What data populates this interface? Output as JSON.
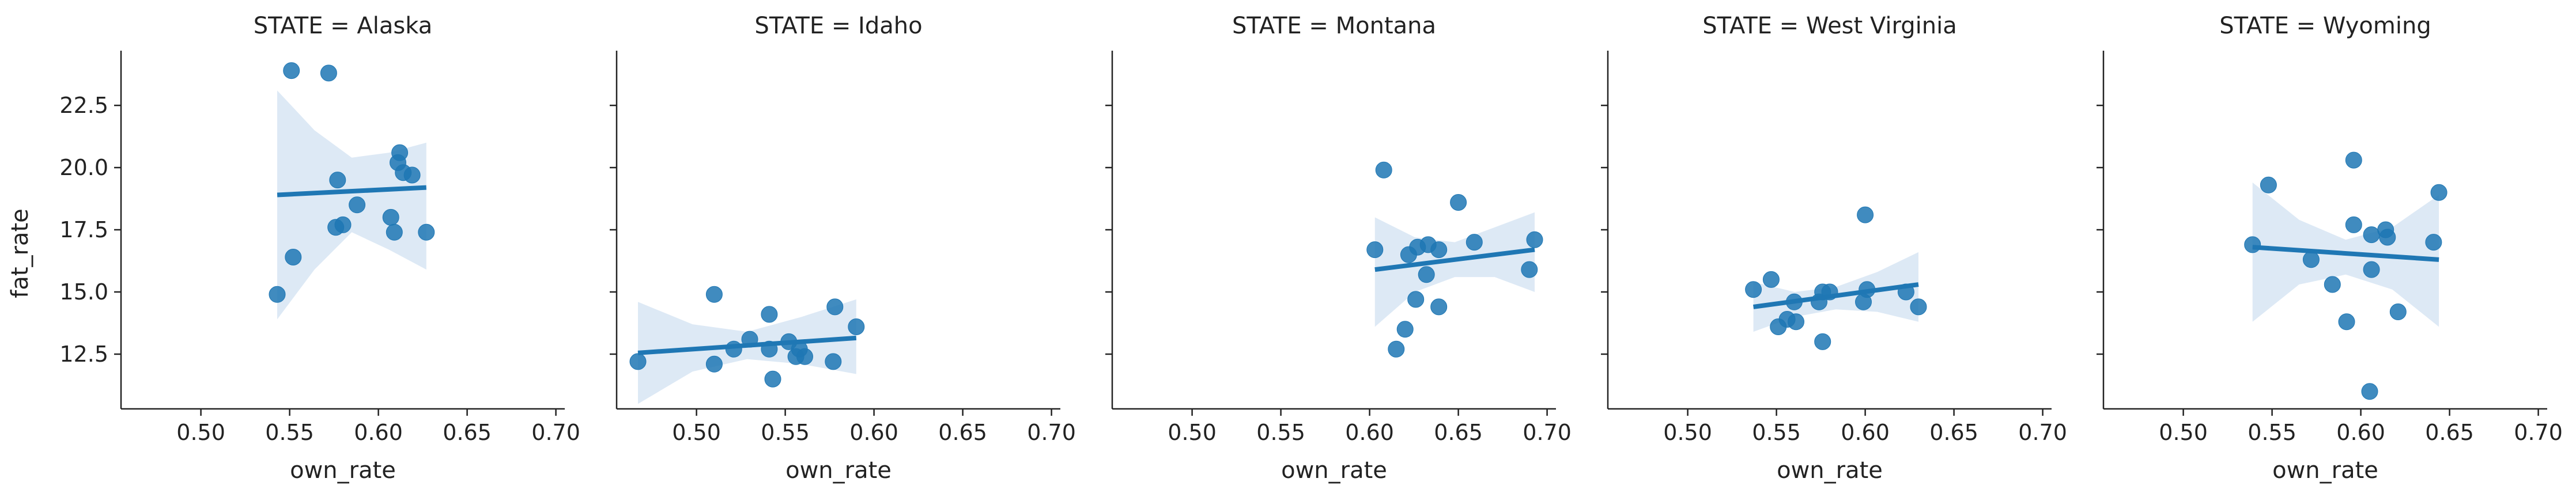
{
  "chart_data": {
    "type": "scatter",
    "subtype": "faceted regression plot (lmplot)",
    "xlabel": "own_rate",
    "ylabel": "fat_rate",
    "xlim": [
      0.455,
      0.705
    ],
    "ylim": [
      10.3,
      24.7
    ],
    "xticks": [
      0.5,
      0.55,
      0.6,
      0.65,
      0.7
    ],
    "xtick_labels": [
      "0.50",
      "0.55",
      "0.60",
      "0.65",
      "0.70"
    ],
    "yticks": [
      12.5,
      15.0,
      17.5,
      20.0,
      22.5
    ],
    "ytick_labels": [
      "12.5",
      "15.0",
      "17.5",
      "20.0",
      "22.5"
    ],
    "shared_y": true,
    "grid": false,
    "color": "#1f77b4",
    "band_color": "#c6dbef",
    "panels": [
      {
        "title": "STATE = Alaska",
        "points": [
          [
            0.551,
            23.9
          ],
          [
            0.572,
            23.8
          ],
          [
            0.612,
            20.6
          ],
          [
            0.611,
            20.2
          ],
          [
            0.614,
            19.8
          ],
          [
            0.619,
            19.7
          ],
          [
            0.577,
            19.5
          ],
          [
            0.588,
            18.5
          ],
          [
            0.607,
            18.0
          ],
          [
            0.576,
            17.6
          ],
          [
            0.58,
            17.7
          ],
          [
            0.609,
            17.4
          ],
          [
            0.627,
            17.4
          ],
          [
            0.552,
            16.4
          ],
          [
            0.543,
            14.9
          ]
        ],
        "fit": {
          "x": [
            0.543,
            0.627
          ],
          "y": [
            18.9,
            19.2
          ]
        },
        "ci_lower": [
          13.9,
          15.9,
          17.4,
          16.7,
          15.9
        ],
        "ci_upper": [
          23.1,
          21.5,
          20.4,
          20.6,
          21.0
        ]
      },
      {
        "title": "STATE = Idaho",
        "points": [
          [
            0.51,
            14.9
          ],
          [
            0.541,
            14.1
          ],
          [
            0.578,
            14.4
          ],
          [
            0.59,
            13.6
          ],
          [
            0.53,
            13.1
          ],
          [
            0.552,
            13.0
          ],
          [
            0.521,
            12.7
          ],
          [
            0.541,
            12.7
          ],
          [
            0.558,
            12.7
          ],
          [
            0.561,
            12.4
          ],
          [
            0.556,
            12.4
          ],
          [
            0.51,
            12.1
          ],
          [
            0.467,
            12.2
          ],
          [
            0.577,
            12.2
          ],
          [
            0.543,
            11.5
          ]
        ],
        "fit": {
          "x": [
            0.467,
            0.59
          ],
          "y": [
            12.55,
            13.15
          ]
        },
        "ci_lower": [
          10.5,
          11.8,
          12.3,
          12.1,
          11.7
        ],
        "ci_upper": [
          14.6,
          13.7,
          13.4,
          14.0,
          14.7
        ]
      },
      {
        "title": "STATE = Montana",
        "points": [
          [
            0.608,
            19.9
          ],
          [
            0.65,
            18.6
          ],
          [
            0.693,
            17.1
          ],
          [
            0.659,
            17.0
          ],
          [
            0.603,
            16.7
          ],
          [
            0.627,
            16.8
          ],
          [
            0.633,
            16.9
          ],
          [
            0.639,
            16.7
          ],
          [
            0.622,
            16.5
          ],
          [
            0.69,
            15.9
          ],
          [
            0.632,
            15.7
          ],
          [
            0.626,
            14.7
          ],
          [
            0.639,
            14.4
          ],
          [
            0.62,
            13.5
          ],
          [
            0.615,
            12.7
          ]
        ],
        "fit": {
          "x": [
            0.603,
            0.693
          ],
          "y": [
            15.9,
            16.7
          ]
        },
        "ci_lower": [
          13.6,
          15.0,
          15.6,
          15.6,
          15.0
        ],
        "ci_upper": [
          18.0,
          17.2,
          17.0,
          17.6,
          18.2
        ]
      },
      {
        "title": "STATE = West Virginia",
        "points": [
          [
            0.6,
            18.1
          ],
          [
            0.547,
            15.5
          ],
          [
            0.537,
            15.1
          ],
          [
            0.576,
            15.0
          ],
          [
            0.58,
            15.0
          ],
          [
            0.601,
            15.1
          ],
          [
            0.623,
            15.0
          ],
          [
            0.56,
            14.6
          ],
          [
            0.574,
            14.6
          ],
          [
            0.599,
            14.6
          ],
          [
            0.63,
            14.4
          ],
          [
            0.556,
            13.9
          ],
          [
            0.561,
            13.8
          ],
          [
            0.551,
            13.6
          ],
          [
            0.576,
            13.0
          ]
        ],
        "fit": {
          "x": [
            0.537,
            0.63
          ],
          "y": [
            14.4,
            15.3
          ]
        },
        "ci_lower": [
          13.4,
          14.0,
          14.3,
          14.2,
          13.8
        ],
        "ci_upper": [
          15.4,
          15.0,
          15.2,
          15.8,
          16.6
        ]
      },
      {
        "title": "STATE = Wyoming",
        "points": [
          [
            0.596,
            20.3
          ],
          [
            0.548,
            19.3
          ],
          [
            0.644,
            19.0
          ],
          [
            0.596,
            17.7
          ],
          [
            0.614,
            17.5
          ],
          [
            0.606,
            17.3
          ],
          [
            0.615,
            17.2
          ],
          [
            0.539,
            16.9
          ],
          [
            0.641,
            17.0
          ],
          [
            0.572,
            16.3
          ],
          [
            0.606,
            15.9
          ],
          [
            0.584,
            15.3
          ],
          [
            0.621,
            14.2
          ],
          [
            0.592,
            13.8
          ],
          [
            0.605,
            11.0
          ]
        ],
        "fit": {
          "x": [
            0.539,
            0.644
          ],
          "y": [
            16.8,
            16.3
          ]
        },
        "ci_lower": [
          13.8,
          15.3,
          15.7,
          15.1,
          13.6
        ],
        "ci_upper": [
          19.4,
          17.9,
          17.1,
          17.6,
          18.9
        ]
      }
    ]
  }
}
